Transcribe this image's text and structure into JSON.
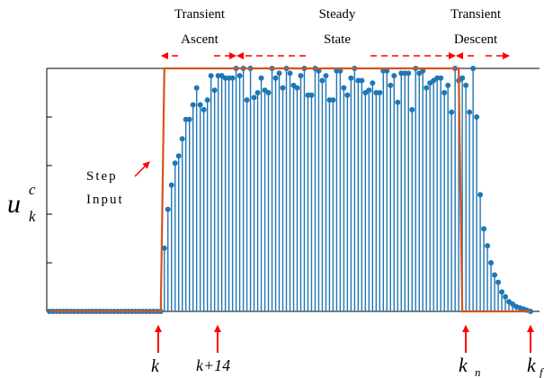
{
  "chart_data": {
    "type": "stem",
    "ylim": [
      0,
      1
    ],
    "ylabel": {
      "main": "u",
      "sup": "c",
      "sub": "k"
    },
    "phases": [
      {
        "line1": "Transient",
        "line2": "Ascent"
      },
      {
        "line1": "Steady",
        "line2": "State"
      },
      {
        "line1": "Transient",
        "line2": "Descent"
      }
    ],
    "step_annotation": {
      "line1": "Step",
      "line2": "Input"
    },
    "markers": [
      {
        "label": "k",
        "sub": ""
      },
      {
        "label": "k+14",
        "sub": ""
      },
      {
        "label": "k",
        "sub": "n"
      },
      {
        "label": "k",
        "sub": "f"
      }
    ],
    "step_input": {
      "low": 0,
      "high": 1,
      "rise_start": 31,
      "rise_end": 32,
      "fall_start": 114,
      "fall_end": 115
    },
    "series": [
      {
        "values": [
          0,
          0,
          0,
          0,
          0,
          0,
          0,
          0,
          0,
          0,
          0,
          0,
          0,
          0,
          0,
          0,
          0,
          0,
          0,
          0,
          0,
          0,
          0,
          0,
          0,
          0,
          0,
          0,
          0,
          0,
          0,
          0,
          0.26,
          0.42,
          0.52,
          0.61,
          0.64,
          0.71,
          0.79,
          0.79,
          0.85,
          0.92,
          0.85,
          0.83,
          0.87,
          0.97,
          0.91,
          0.97,
          0.97,
          0.96,
          0.96,
          0.96,
          1.0,
          0.97,
          1.0,
          0.87,
          1.0,
          0.88,
          0.9,
          0.96,
          0.91,
          0.9,
          1.0,
          0.96,
          0.98,
          0.92,
          1.0,
          0.98,
          0.93,
          0.92,
          0.97,
          1.0,
          0.89,
          0.89,
          1.0,
          0.99,
          0.95,
          0.97,
          0.87,
          0.87,
          0.99,
          0.99,
          0.92,
          0.89,
          0.96,
          1.0,
          0.95,
          0.95,
          0.9,
          0.91,
          0.94,
          0.9,
          0.9,
          0.99,
          0.99,
          0.93,
          0.97,
          0.86,
          0.98,
          0.98,
          0.98,
          0.83,
          1.0,
          0.98,
          0.99,
          0.92,
          0.94,
          0.95,
          0.96,
          0.96,
          0.9,
          0.93,
          0.82,
          1.0,
          0.95,
          0.96,
          0.93,
          0.82,
          1.0,
          0.8,
          0.48,
          0.34,
          0.27,
          0.2,
          0.15,
          0.12,
          0.08,
          0.06,
          0.04,
          0.03,
          0.02,
          0.015,
          0.01,
          0.005,
          0
        ]
      }
    ]
  }
}
